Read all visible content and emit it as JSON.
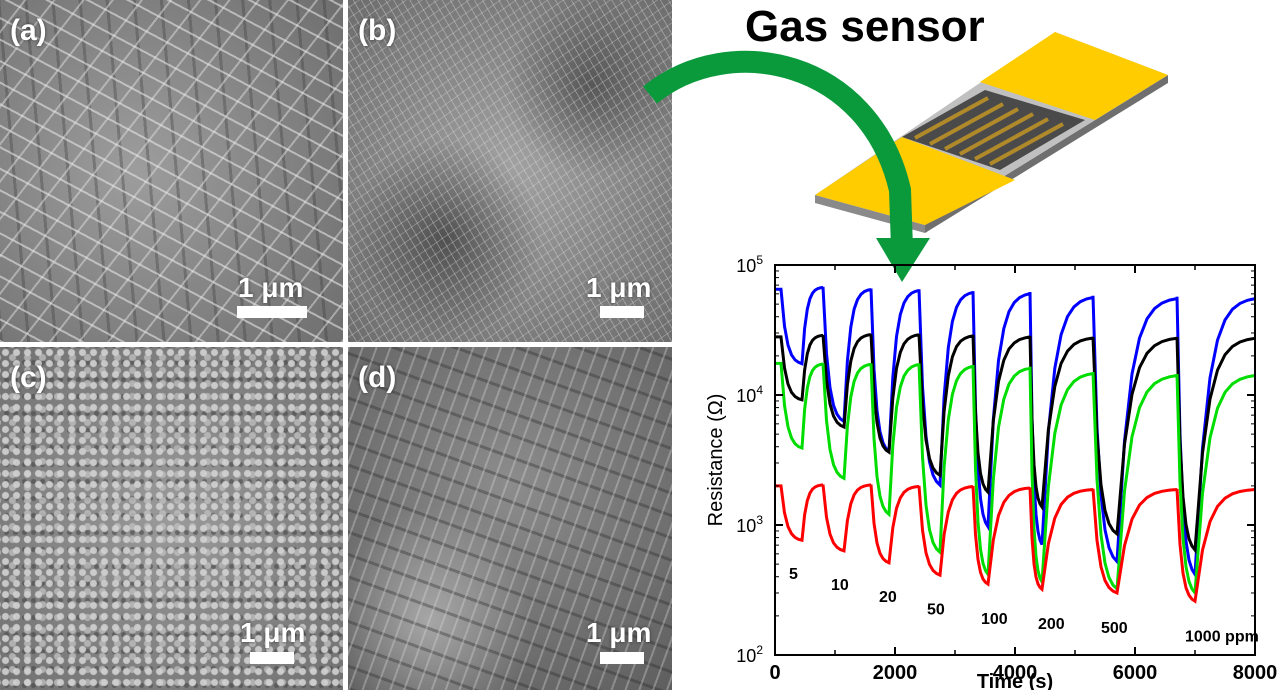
{
  "title": "Gas sensor",
  "panels": [
    {
      "label": "(a)",
      "scale": "1 μm"
    },
    {
      "label": "(b)",
      "scale": "1 μm"
    },
    {
      "label": "(c)",
      "scale": "1 μm"
    },
    {
      "label": "(d)",
      "scale": "1 μm"
    }
  ],
  "colors": {
    "sensor_electrode": "#ffcc00",
    "sensor_substrate": "#c0c0c0",
    "arrow": "#0a9a3c"
  },
  "chart_data": {
    "type": "line",
    "xlabel": "Time (s)",
    "ylabel": "Resistance (Ω)",
    "xlim": [
      0,
      8000
    ],
    "ylim": [
      100,
      100000
    ],
    "yscale": "log",
    "x_ticks": [
      "0",
      "2000",
      "4000",
      "6000",
      "8000"
    ],
    "y_ticks": [
      {
        "base": "10",
        "exp": "2"
      },
      {
        "base": "10",
        "exp": "3"
      },
      {
        "base": "10",
        "exp": "4"
      },
      {
        "base": "10",
        "exp": "5"
      }
    ],
    "annotations": [
      "5",
      "10",
      "20",
      "50",
      "100",
      "200",
      "500",
      "1000 ppm"
    ],
    "pulses": [
      {
        "start": 100,
        "end": 450
      },
      {
        "start": 800,
        "end": 1150
      },
      {
        "start": 1600,
        "end": 1900
      },
      {
        "start": 2400,
        "end": 2750
      },
      {
        "start": 3300,
        "end": 3550
      },
      {
        "start": 4250,
        "end": 4450
      },
      {
        "start": 5300,
        "end": 5700
      },
      {
        "start": 6700,
        "end": 7000
      }
    ],
    "series": [
      {
        "color": "#0000ff",
        "high": [
          65000,
          68000,
          66000,
          65000,
          63000,
          62000,
          58000,
          57000
        ],
        "low": [
          17000,
          6000,
          3500,
          1900,
          900,
          650,
          480,
          380
        ]
      },
      {
        "color": "#000000",
        "high": [
          28000,
          29000,
          29500,
          29500,
          29000,
          28500,
          28000,
          28000
        ],
        "low": [
          9000,
          5500,
          3500,
          2300,
          1700,
          1300,
          800,
          600
        ]
      },
      {
        "color": "#00dd00",
        "high": [
          17500,
          17500,
          17500,
          17500,
          17000,
          16500,
          15000,
          14500
        ],
        "low": [
          3800,
          2200,
          1150,
          580,
          390,
          340,
          300,
          280
        ]
      },
      {
        "color": "#ff0000",
        "high": [
          2000,
          2050,
          2050,
          2000,
          2000,
          1950,
          1900,
          1900
        ],
        "low": [
          750,
          620,
          500,
          400,
          340,
          310,
          290,
          250
        ]
      }
    ]
  }
}
